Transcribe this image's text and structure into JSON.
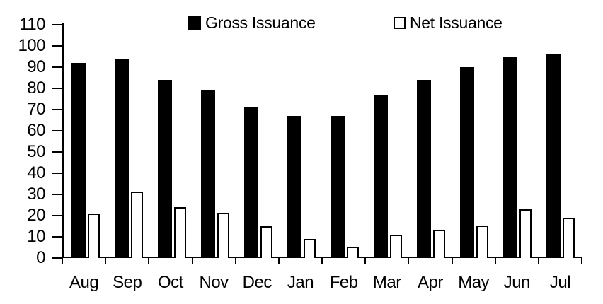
{
  "chart_data": {
    "type": "bar",
    "title": "",
    "categories": [
      "Aug",
      "Sep",
      "Oct",
      "Nov",
      "Dec",
      "Jan",
      "Feb",
      "Mar",
      "Apr",
      "May",
      "Jun",
      "Jul"
    ],
    "series": [
      {
        "name": "Gross Issuance",
        "swatch": "filled-black-square-icon",
        "values": [
          92,
          94,
          84,
          79,
          71,
          67,
          67,
          77,
          84,
          90,
          95,
          96
        ]
      },
      {
        "name": "Net Issuance",
        "swatch": "white-outlined-square-icon",
        "values": [
          21,
          31.5,
          24,
          21.5,
          15,
          9,
          5.5,
          11,
          13.5,
          15.5,
          23,
          19
        ]
      }
    ],
    "xlabel": "",
    "ylabel": "",
    "ylim": [
      0,
      110
    ],
    "yticks": [
      0,
      10,
      20,
      30,
      40,
      50,
      60,
      70,
      80,
      90,
      100,
      110
    ],
    "grid": false,
    "legend_position": "top",
    "colors": {
      "gross_bar_fill": "#000000",
      "net_bar_fill": "#ffffff",
      "net_bar_outline": "#000000",
      "axis": "#000000",
      "text": "#000000",
      "background": "#ffffff"
    }
  }
}
